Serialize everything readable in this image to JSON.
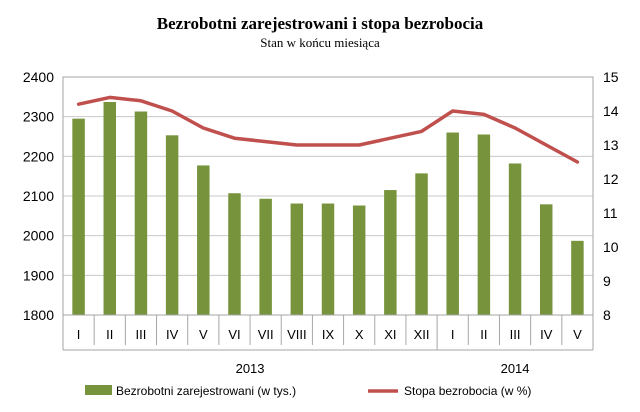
{
  "chart_data": {
    "type": "bar",
    "title": "Bezrobotni zarejestrowani i stopa bezrobocia",
    "subtitle": "Stan w końcu miesiąca",
    "categories": [
      "I",
      "II",
      "III",
      "IV",
      "V",
      "VI",
      "VII",
      "VIII",
      "IX",
      "X",
      "XI",
      "XII",
      "I",
      "II",
      "III",
      "IV",
      "V"
    ],
    "groups": [
      {
        "label": "2013",
        "start": 0,
        "end": 11
      },
      {
        "label": "2014",
        "start": 12,
        "end": 16
      }
    ],
    "series": [
      {
        "name": "Bezrobotni zarejestrowani  (w tys.)",
        "type": "bar",
        "axis": "left",
        "color": "#77933c",
        "values": [
          2295,
          2337,
          2313,
          2253,
          2177,
          2107,
          2093,
          2081,
          2081,
          2076,
          2115,
          2157,
          2260,
          2255,
          2182,
          2079,
          1987
        ]
      },
      {
        "name": "Stopa bezrobocia  (w %)",
        "type": "line",
        "axis": "right",
        "color": "#c0504d",
        "values": [
          14.2,
          14.4,
          14.3,
          14.0,
          13.5,
          13.2,
          13.1,
          13.0,
          13.0,
          13.0,
          13.2,
          13.4,
          14.0,
          13.9,
          13.5,
          13.0,
          12.5
        ]
      }
    ],
    "y_left": {
      "lim": [
        1800,
        2400
      ],
      "ticks": [
        1800,
        1900,
        2000,
        2100,
        2200,
        2300,
        2400
      ]
    },
    "y_right": {
      "lim": [
        8,
        15
      ],
      "ticks": [
        8,
        9,
        10,
        11,
        12,
        13,
        14,
        15
      ]
    },
    "grid": true,
    "legend_position": "bottom"
  }
}
